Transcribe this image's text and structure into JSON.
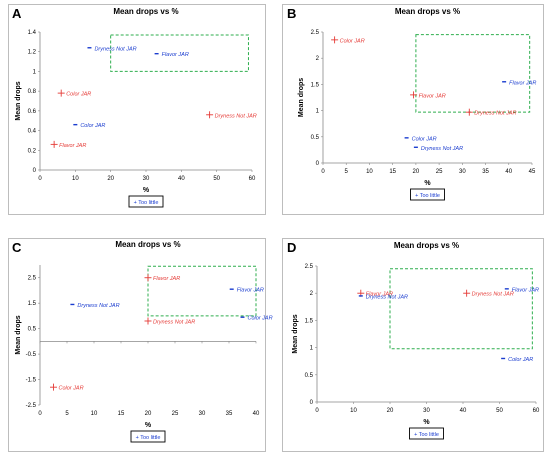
{
  "figure_panels": [
    "A",
    "B",
    "C",
    "D"
  ],
  "chart_data": [
    {
      "panel": "A",
      "type": "scatter",
      "title": "Mean drops vs %",
      "xlabel": "%",
      "ylabel": "Mean drops",
      "xlim": [
        0,
        60
      ],
      "ylim": [
        0,
        1.4
      ],
      "xticks": [
        "0",
        "10",
        "20",
        "30",
        "40",
        "50",
        "60"
      ],
      "yticks": [
        "0",
        "0.2",
        "0.4",
        "0.6",
        "0.8",
        "1",
        "1.2",
        "1.4"
      ],
      "legend": "+ Too little",
      "box": {
        "x": [
          20,
          59
        ],
        "y": [
          1.0,
          1.37
        ]
      },
      "points": [
        {
          "x": 48,
          "y": 0.56,
          "label": "Dryness Not JAR",
          "color": "#e53935",
          "marker": "plus"
        },
        {
          "x": 6,
          "y": 0.78,
          "label": "Color JAR",
          "color": "#e53935",
          "marker": "plus"
        },
        {
          "x": 4,
          "y": 0.26,
          "label": "Flavor JAR",
          "color": "#e53935",
          "marker": "plus"
        },
        {
          "x": 14,
          "y": 1.24,
          "label": "Dryness Not JAR",
          "color": "#1a3ccf",
          "marker": "dash"
        },
        {
          "x": 33,
          "y": 1.18,
          "label": "Flavor JAR",
          "color": "#1a3ccf",
          "marker": "dash"
        },
        {
          "x": 10,
          "y": 0.46,
          "label": "Color JAR",
          "color": "#1a3ccf",
          "marker": "dash"
        }
      ]
    },
    {
      "panel": "B",
      "type": "scatter",
      "title": "Mean drops vs %",
      "xlabel": "%",
      "ylabel": "Mean drops",
      "xlim": [
        0,
        45
      ],
      "ylim": [
        0,
        2.5
      ],
      "xticks": [
        "0",
        "5",
        "10",
        "15",
        "20",
        "25",
        "30",
        "35",
        "40",
        "45"
      ],
      "yticks": [
        "0",
        "0.5",
        "1",
        "1.5",
        "2",
        "2.5"
      ],
      "legend": "+ Too little",
      "box": {
        "x": [
          20,
          44.5
        ],
        "y": [
          0.97,
          2.45
        ]
      },
      "points": [
        {
          "x": 2.5,
          "y": 2.35,
          "label": "Color JAR",
          "color": "#e53935",
          "marker": "plus"
        },
        {
          "x": 19.5,
          "y": 1.3,
          "label": "Flavor JAR",
          "color": "#e53935",
          "marker": "plus"
        },
        {
          "x": 31.5,
          "y": 0.97,
          "label": "Dryness Not JAR",
          "color": "#e53935",
          "marker": "plus"
        },
        {
          "x": 39,
          "y": 1.55,
          "label": "Flavor JAR",
          "color": "#1a3ccf",
          "marker": "dash"
        },
        {
          "x": 18,
          "y": 0.48,
          "label": "Color JAR",
          "color": "#1a3ccf",
          "marker": "dash"
        },
        {
          "x": 20,
          "y": 0.3,
          "label": "Dryness Not JAR",
          "color": "#1a3ccf",
          "marker": "dash"
        }
      ]
    },
    {
      "panel": "C",
      "type": "scatter",
      "title": "Mean drops vs %",
      "xlabel": "%",
      "ylabel": "Mean drops",
      "xlim": [
        0,
        40
      ],
      "ylim": [
        -2.5,
        3
      ],
      "xticks": [
        "0",
        "5",
        "10",
        "15",
        "20",
        "25",
        "30",
        "35",
        "40"
      ],
      "yticks": [
        "-2.5",
        "-1.5",
        "-0.5",
        "0.5",
        "1.5",
        "2.5"
      ],
      "legend": "+ Too little",
      "box": {
        "x": [
          20,
          40
        ],
        "y": [
          1.0,
          2.95
        ]
      },
      "points": [
        {
          "x": 20,
          "y": 2.5,
          "label": "Flavor JAR",
          "color": "#e53935",
          "marker": "plus"
        },
        {
          "x": 20,
          "y": 0.8,
          "label": "Dryness Not JAR",
          "color": "#e53935",
          "marker": "plus"
        },
        {
          "x": 2.5,
          "y": -1.8,
          "label": "Color JAR",
          "color": "#e53935",
          "marker": "plus"
        },
        {
          "x": 6,
          "y": 1.45,
          "label": "Dryness Not JAR",
          "color": "#1a3ccf",
          "marker": "dash"
        },
        {
          "x": 35.5,
          "y": 2.05,
          "label": "Flavor JAR",
          "color": "#1a3ccf",
          "marker": "dash"
        },
        {
          "x": 37.5,
          "y": 0.95,
          "label": "Color JAR",
          "color": "#1a3ccf",
          "marker": "dash"
        }
      ]
    },
    {
      "panel": "D",
      "type": "scatter",
      "title": "Mean drops vs %",
      "xlabel": "%",
      "ylabel": "Mean drops",
      "xlim": [
        0,
        60
      ],
      "ylim": [
        0,
        2.5
      ],
      "xticks": [
        "0",
        "10",
        "20",
        "30",
        "40",
        "50",
        "60"
      ],
      "yticks": [
        "0",
        "0.5",
        "1",
        "1.5",
        "2",
        "2.5"
      ],
      "legend": "+ Too little",
      "box": {
        "x": [
          20,
          59
        ],
        "y": [
          0.98,
          2.45
        ]
      },
      "points": [
        {
          "x": 12,
          "y": 2.0,
          "label": "Flavor JAR",
          "color": "#e53935",
          "marker": "plus"
        },
        {
          "x": 41,
          "y": 2.0,
          "label": "Dryness Not JAR",
          "color": "#e53935",
          "marker": "plus"
        },
        {
          "x": 12,
          "y": 1.95,
          "label": "Dryness Not JAR",
          "color": "#1a3ccf",
          "marker": "dash"
        },
        {
          "x": 52,
          "y": 2.08,
          "label": "Flavor JAR",
          "color": "#1a3ccf",
          "marker": "dash"
        },
        {
          "x": 51,
          "y": 0.8,
          "label": "Color JAR",
          "color": "#1a3ccf",
          "marker": "dash"
        }
      ]
    }
  ]
}
